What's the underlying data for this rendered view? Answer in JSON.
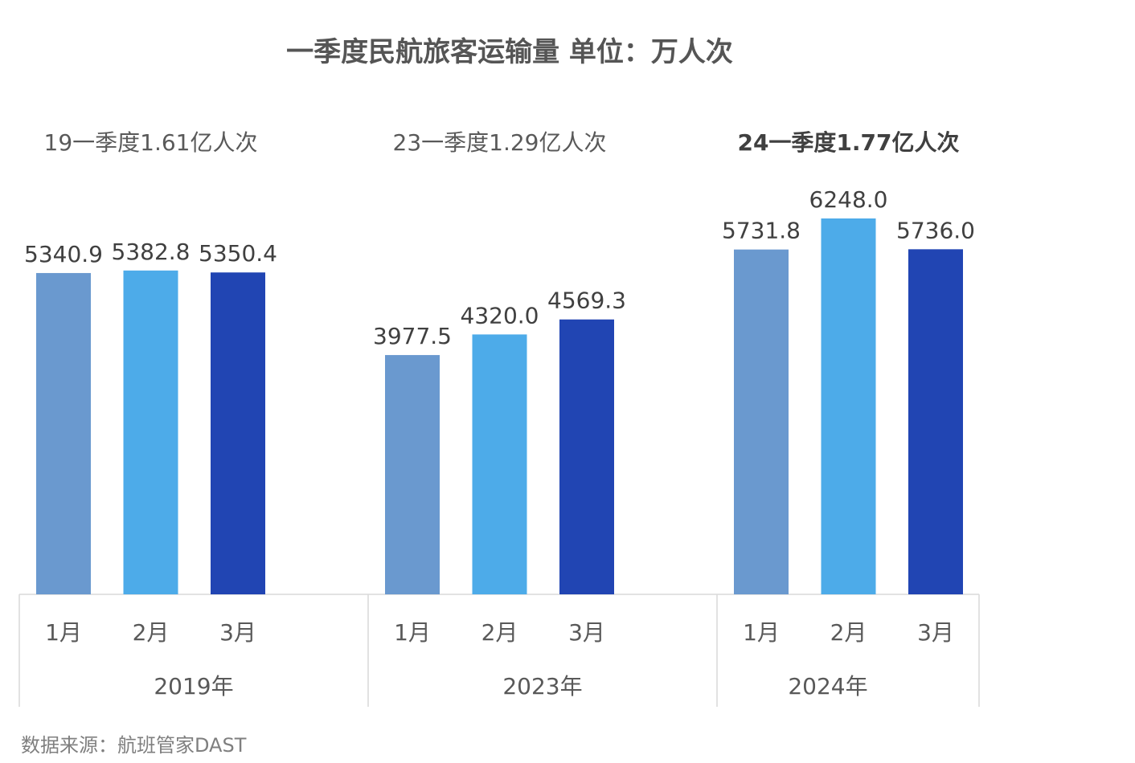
{
  "chart_data": {
    "type": "bar",
    "title": "一季度民航旅客运输量 单位：万人次",
    "source": "数据来源：航班管家DAST",
    "months": [
      "1月",
      "2月",
      "3月"
    ],
    "groups": [
      {
        "year": "2019年",
        "summary": "19一季度1.61亿人次",
        "values": [
          5340.9,
          5382.8,
          5350.4
        ],
        "value_labels": [
          "5340.9",
          "5382.8",
          "5350.4"
        ],
        "summary_bold": false
      },
      {
        "year": "2023年",
        "summary": "23一季度1.29亿人次",
        "values": [
          3977.5,
          4320.0,
          4569.3
        ],
        "value_labels": [
          "3977.5",
          "4320.0",
          "4569.3"
        ],
        "summary_bold": false
      },
      {
        "year": "2024年",
        "summary": "24一季度1.77亿人次",
        "values": [
          5731.8,
          6248.0,
          5736.0
        ],
        "value_labels": [
          "5731.8",
          "6248.0",
          "5736.0"
        ],
        "summary_bold": true
      }
    ],
    "colors": [
      "#6a99cf",
      "#4dabe9",
      "#2145b3"
    ],
    "ylim": [
      0,
      6248.0
    ],
    "grid": false,
    "legend": "none"
  }
}
